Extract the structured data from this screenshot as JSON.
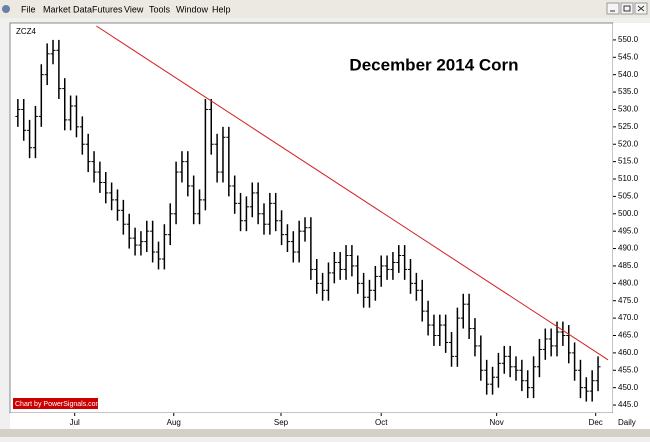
{
  "menu": [
    "File",
    "Market Data",
    "Futures",
    "View",
    "Tools",
    "Window",
    "Help"
  ],
  "chart_data": {
    "type": "ohlc",
    "title": "December 2014 Corn",
    "symbol": "ZCZ4",
    "credit": "Chart by PowerSignals.com",
    "period": "Daily",
    "color": "#000000",
    "x": [
      0,
      1,
      2,
      3,
      4,
      5,
      6,
      7,
      8,
      9,
      10,
      11,
      12,
      13,
      14,
      15,
      16,
      17,
      18,
      19,
      20,
      21,
      22,
      23,
      24,
      25,
      26,
      27,
      28,
      29,
      30,
      31,
      32,
      33,
      34,
      35,
      36,
      37,
      38,
      39,
      40,
      41,
      42,
      43,
      44,
      45,
      46,
      47,
      48,
      49,
      50,
      51,
      52,
      53,
      54,
      55,
      56,
      57,
      58,
      59,
      60,
      61,
      62,
      63,
      64,
      65,
      66,
      67,
      68,
      69,
      70,
      71,
      72,
      73,
      74,
      75,
      76,
      77,
      78,
      79,
      80,
      81,
      82,
      83,
      84,
      85,
      86,
      87,
      88,
      89,
      90,
      91,
      92,
      93,
      94,
      95,
      96,
      97,
      98,
      99
    ],
    "open": [
      528,
      530,
      524,
      519,
      528,
      540,
      546,
      547,
      536,
      527,
      531,
      525,
      520,
      515,
      512,
      509,
      506,
      504,
      501,
      497,
      493,
      491,
      492,
      495,
      489,
      487,
      494,
      500,
      512,
      515,
      508,
      500,
      504,
      530,
      520,
      512,
      522,
      508,
      503,
      498,
      502,
      506,
      500,
      497,
      503,
      498,
      494,
      492,
      489,
      495,
      496,
      484,
      480,
      478,
      483,
      486,
      484,
      488,
      485,
      480,
      476,
      478,
      482,
      485,
      484,
      486,
      488,
      484,
      480,
      478,
      472,
      468,
      465,
      468,
      463,
      459,
      470,
      474,
      467,
      462,
      455,
      451,
      453,
      457,
      459,
      456,
      455,
      452,
      450,
      456,
      461,
      464,
      462,
      466,
      465,
      460,
      455,
      450,
      449,
      452
    ],
    "high": [
      533,
      533,
      527,
      531,
      543,
      549,
      550,
      550,
      539,
      534,
      534,
      528,
      523,
      518,
      515,
      512,
      509,
      507,
      504,
      500,
      496,
      495,
      498,
      498,
      492,
      497,
      503,
      515,
      518,
      518,
      511,
      507,
      533,
      533,
      523,
      525,
      525,
      511,
      506,
      505,
      509,
      509,
      503,
      506,
      506,
      501,
      497,
      495,
      498,
      499,
      499,
      487,
      483,
      486,
      489,
      489,
      491,
      491,
      488,
      483,
      481,
      485,
      488,
      488,
      489,
      491,
      491,
      487,
      483,
      481,
      475,
      471,
      471,
      471,
      466,
      473,
      477,
      477,
      470,
      465,
      458,
      456,
      460,
      462,
      462,
      459,
      458,
      455,
      459,
      464,
      467,
      467,
      469,
      469,
      468,
      463,
      458,
      453,
      455,
      459
    ],
    "low": [
      525,
      521,
      516,
      516,
      525,
      537,
      543,
      533,
      524,
      524,
      522,
      517,
      512,
      509,
      506,
      503,
      501,
      498,
      494,
      490,
      488,
      488,
      489,
      486,
      484,
      484,
      491,
      497,
      509,
      505,
      497,
      497,
      501,
      517,
      509,
      509,
      505,
      500,
      495,
      495,
      499,
      497,
      494,
      494,
      495,
      491,
      489,
      486,
      486,
      492,
      481,
      477,
      475,
      475,
      480,
      481,
      481,
      482,
      477,
      473,
      473,
      475,
      479,
      481,
      481,
      483,
      481,
      477,
      475,
      469,
      465,
      462,
      462,
      460,
      456,
      456,
      467,
      464,
      459,
      452,
      448,
      448,
      450,
      454,
      453,
      452,
      449,
      447,
      447,
      453,
      458,
      459,
      459,
      462,
      457,
      452,
      447,
      446,
      446,
      449
    ],
    "close": [
      530,
      524,
      519,
      528,
      540,
      546,
      547,
      536,
      527,
      531,
      525,
      520,
      515,
      512,
      509,
      506,
      504,
      501,
      497,
      493,
      491,
      492,
      495,
      489,
      487,
      494,
      500,
      512,
      515,
      508,
      500,
      504,
      530,
      520,
      512,
      522,
      508,
      503,
      498,
      502,
      506,
      500,
      497,
      503,
      498,
      494,
      492,
      489,
      495,
      496,
      484,
      480,
      478,
      483,
      486,
      484,
      488,
      485,
      480,
      476,
      478,
      482,
      485,
      484,
      486,
      488,
      484,
      480,
      478,
      472,
      468,
      465,
      468,
      463,
      459,
      470,
      474,
      467,
      462,
      455,
      451,
      453,
      457,
      459,
      456,
      455,
      452,
      450,
      456,
      461,
      464,
      462,
      466,
      465,
      460,
      455,
      450,
      449,
      452,
      456
    ],
    "xlim": [
      -1,
      100.7
    ],
    "xticks": [
      {
        "value": 9.7,
        "label": "Jul"
      },
      {
        "value": 26.6,
        "label": "Aug"
      },
      {
        "value": 44.9,
        "label": "Sep"
      },
      {
        "value": 62,
        "label": "Oct"
      },
      {
        "value": 81.7,
        "label": "Nov"
      },
      {
        "value": 98.6,
        "label": "Dec"
      }
    ],
    "ylim": [
      443,
      554
    ],
    "yticks": [
      {
        "value": 445,
        "label": "445.0"
      },
      {
        "value": 450,
        "label": "450.0"
      },
      {
        "value": 455,
        "label": "455.0"
      },
      {
        "value": 460,
        "label": "460.0"
      },
      {
        "value": 465,
        "label": "465.0"
      },
      {
        "value": 470,
        "label": "470.0"
      },
      {
        "value": 475,
        "label": "475.0"
      },
      {
        "value": 480,
        "label": "480.0"
      },
      {
        "value": 485,
        "label": "485.0"
      },
      {
        "value": 490,
        "label": "490.0"
      },
      {
        "value": 495,
        "label": "495.0"
      },
      {
        "value": 500,
        "label": "500.0"
      },
      {
        "value": 505,
        "label": "505.0"
      },
      {
        "value": 510,
        "label": "510.0"
      },
      {
        "value": 515,
        "label": "515.0"
      },
      {
        "value": 520,
        "label": "520.0"
      },
      {
        "value": 525,
        "label": "525.0"
      },
      {
        "value": 530,
        "label": "530.0"
      },
      {
        "value": 535,
        "label": "535.0"
      },
      {
        "value": 540,
        "label": "540.0"
      },
      {
        "value": 545,
        "label": "545.0"
      },
      {
        "value": 550,
        "label": "550.0"
      }
    ],
    "trendline": {
      "color": "#d62020",
      "x": [
        13.4,
        100.7
      ],
      "y": [
        554,
        458
      ]
    }
  }
}
